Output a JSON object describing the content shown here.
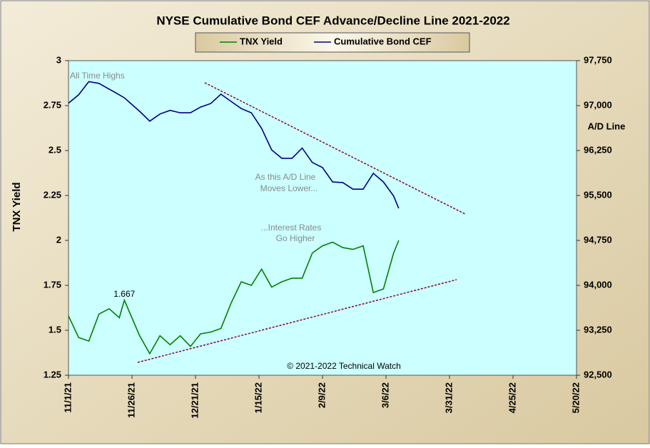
{
  "chart_data": {
    "type": "line",
    "title": "NYSE Cumulative  Bond CEF Advance/Decline  Line 2021-2022",
    "y_label": "TNX Yield",
    "y2_label": "A/D Line",
    "annotations": [
      "All Time Highs",
      "As this A/D Line",
      "Moves Lower...",
      "...Interest Rates",
      "Go Higher",
      "© 2021-2022  Technical Watch"
    ],
    "x": [
      "2021-11-01",
      "2021-11-05",
      "2021-11-09",
      "2021-11-13",
      "2021-11-17",
      "2021-11-21",
      "2021-11-23",
      "2021-11-29",
      "2021-12-03",
      "2021-12-07",
      "2021-12-11",
      "2021-12-15",
      "2021-12-19",
      "2021-12-23",
      "2021-12-27",
      "2021-12-31",
      "2022-01-04",
      "2022-01-08",
      "2022-01-12",
      "2022-01-16",
      "2022-01-20",
      "2022-01-24",
      "2022-01-28",
      "2022-02-01",
      "2022-02-05",
      "2022-02-09",
      "2022-02-13",
      "2022-02-17",
      "2022-02-21",
      "2022-02-25",
      "2022-03-01",
      "2022-03-05",
      "2022-03-09",
      "2022-03-11"
    ],
    "series": [
      {
        "name": "TNX Yield",
        "color": "#008000",
        "axis": "y",
        "values": [
          1.58,
          1.46,
          1.44,
          1.59,
          1.62,
          1.57,
          1.667,
          1.47,
          1.37,
          1.47,
          1.42,
          1.47,
          1.41,
          1.48,
          1.49,
          1.51,
          1.65,
          1.77,
          1.75,
          1.84,
          1.74,
          1.77,
          1.79,
          1.79,
          1.93,
          1.97,
          1.99,
          1.96,
          1.95,
          1.97,
          1.71,
          1.73,
          1.93,
          2.0
        ],
        "value_labels": [
          null,
          null,
          null,
          null,
          null,
          null,
          "1.667",
          null,
          null,
          null,
          null,
          null,
          null,
          null,
          null,
          null,
          null,
          null,
          null,
          null,
          null,
          null,
          null,
          null,
          null,
          null,
          null,
          null,
          null,
          null,
          null,
          null,
          null,
          null
        ]
      },
      {
        "name": "Cumulative Bond CEF",
        "color": "#000080",
        "axis": "y2",
        "values": [
          97040,
          97180,
          97400,
          97370,
          97275,
          97180,
          97130,
          96905,
          96740,
          96860,
          96920,
          96880,
          96880,
          96975,
          97035,
          97190,
          97070,
          96950,
          96880,
          96620,
          96260,
          96120,
          96120,
          96290,
          96050,
          95965,
          95725,
          95715,
          95605,
          95605,
          95870,
          95725,
          95490,
          95285
        ]
      }
    ],
    "xlim": [
      "2021-11-01",
      "2022-05-20"
    ],
    "xticks": [
      {
        "value": "2021-11-01",
        "label": "11/1/21"
      },
      {
        "value": "2021-11-26",
        "label": "11/26/21"
      },
      {
        "value": "2021-12-21",
        "label": "12/21/21"
      },
      {
        "value": "2022-01-15",
        "label": "1/15/22"
      },
      {
        "value": "2022-02-09",
        "label": "2/9/22"
      },
      {
        "value": "2022-03-06",
        "label": "3/6/22"
      },
      {
        "value": "2022-03-31",
        "label": "3/31/22"
      },
      {
        "value": "2022-04-25",
        "label": "4/25/22"
      },
      {
        "value": "2022-05-20",
        "label": "5/20/22"
      }
    ],
    "ylim": [
      1.25,
      3
    ],
    "yticks": [
      1.25,
      1.5,
      1.75,
      2,
      2.25,
      2.5,
      2.75,
      3
    ],
    "y2lim": [
      92500,
      97750
    ],
    "y2ticks": [
      {
        "value": 92500,
        "label": "92,500"
      },
      {
        "value": 93250,
        "label": "93,250"
      },
      {
        "value": 94000,
        "label": "94,000"
      },
      {
        "value": 94750,
        "label": "94,750"
      },
      {
        "value": 95500,
        "label": "95,500"
      },
      {
        "value": 96250,
        "label": "96,250"
      },
      {
        "value": 97000,
        "label": "97,000"
      },
      {
        "value": 97750,
        "label": "97,750"
      }
    ]
  }
}
